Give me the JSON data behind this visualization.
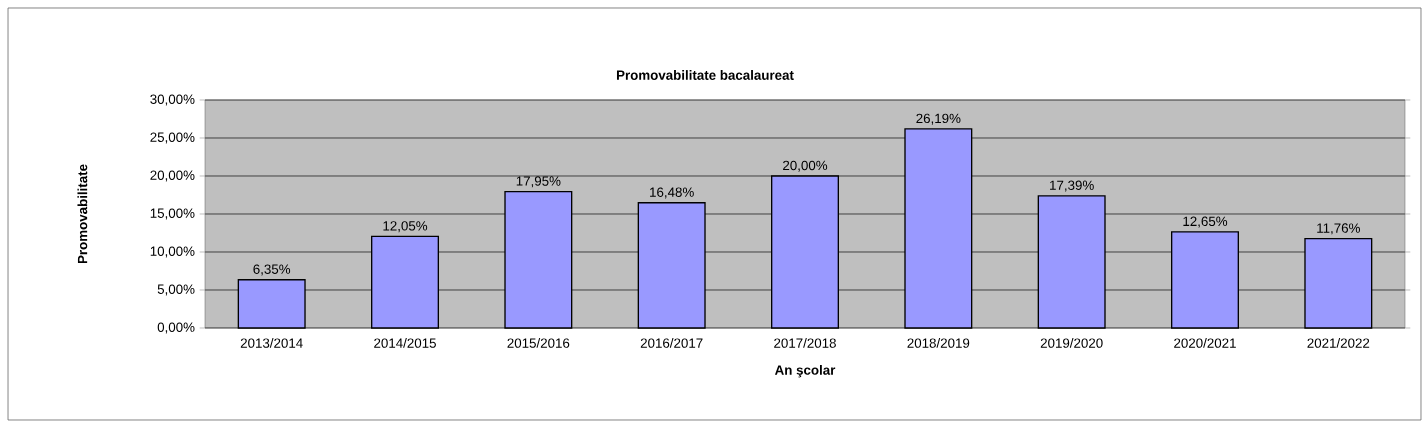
{
  "chart_data": {
    "type": "bar",
    "title": "Promovabilitate bacalaureat",
    "xlabel": "An şcolar",
    "ylabel": "Promovabilitate",
    "categories": [
      "2013/2014",
      "2014/2015",
      "2015/2016",
      "2016/2017",
      "2017/2018",
      "2018/2019",
      "2019/2020",
      "2020/2021",
      "2021/2022"
    ],
    "values": [
      6.35,
      12.05,
      17.95,
      16.48,
      20.0,
      26.19,
      17.39,
      12.65,
      11.76
    ],
    "value_labels": [
      "6,35%",
      "12,05%",
      "17,95%",
      "16,48%",
      "20,00%",
      "26,19%",
      "17,39%",
      "12,65%",
      "11,76%"
    ],
    "color": "#9999ff",
    "ylim": [
      0,
      30
    ],
    "yticks": [
      {
        "value": 0,
        "label": "0,00%"
      },
      {
        "value": 5,
        "label": "5,00%"
      },
      {
        "value": 10,
        "label": "10,00%"
      },
      {
        "value": 15,
        "label": "15,00%"
      },
      {
        "value": 20,
        "label": "20,00%"
      },
      {
        "value": 25,
        "label": "25,00%"
      },
      {
        "value": 30,
        "label": "30,00%"
      }
    ],
    "grid": "y"
  }
}
